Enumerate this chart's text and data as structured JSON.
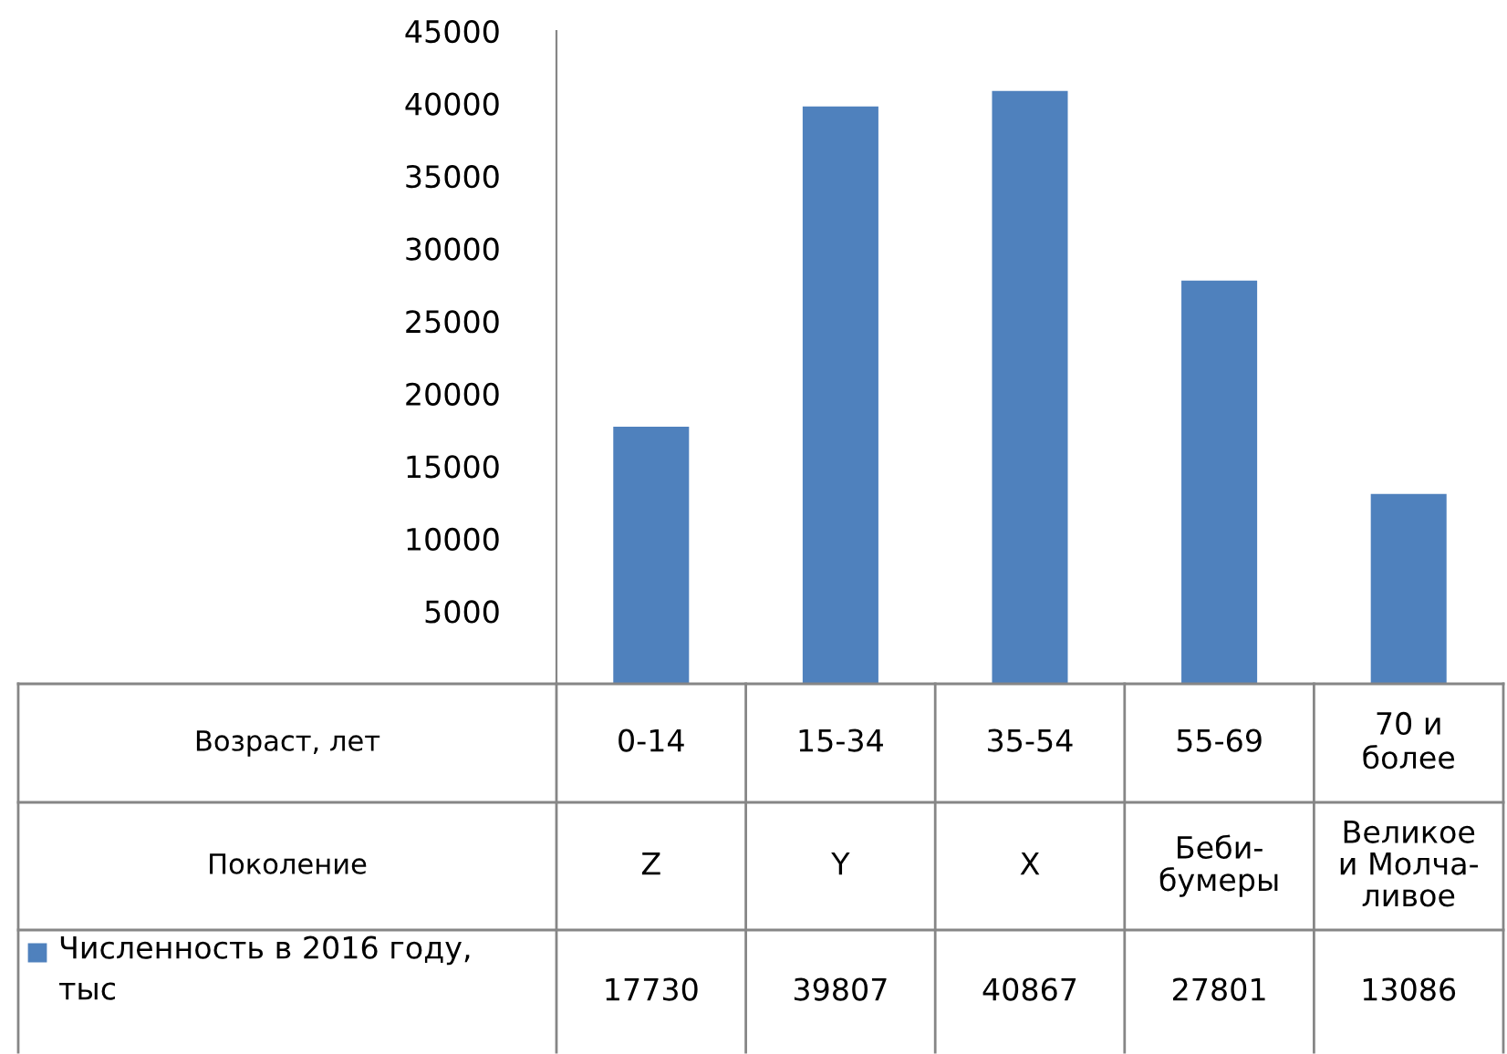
{
  "chart_data": {
    "type": "bar",
    "categories": [
      "0-14",
      "15-34",
      "35-54",
      "55-69",
      "70 и\nболее"
    ],
    "series": [
      {
        "name": "Численность в 2016 году,\nтыс",
        "color": "#4f81bd",
        "values": [
          17730,
          39807,
          40867,
          27801,
          13086
        ]
      }
    ],
    "ylim": [
      0,
      45000
    ],
    "yticks": [
      5000,
      10000,
      15000,
      20000,
      25000,
      30000,
      35000,
      40000,
      45000
    ],
    "grid": false,
    "data_labels": true,
    "annotations": [
      "Возраст, лет",
      "Поколение",
      "Z",
      "Y",
      "X",
      "Беби-\nбумеры",
      "Великое\nи Молча-\nливое"
    ]
  }
}
